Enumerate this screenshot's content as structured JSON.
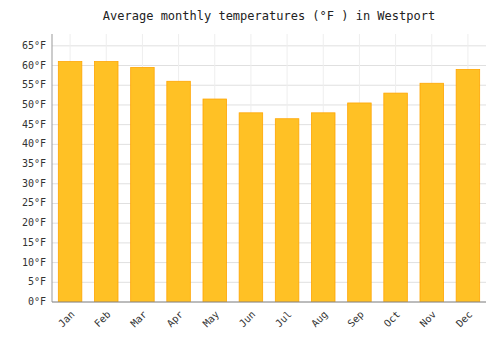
{
  "chart_data": {
    "type": "bar",
    "title": "Average monthly temperatures (°F ) in Westport",
    "categories": [
      "Jan",
      "Feb",
      "Mar",
      "Apr",
      "May",
      "Jun",
      "Jul",
      "Aug",
      "Sep",
      "Oct",
      "Nov",
      "Dec"
    ],
    "values": [
      61,
      61,
      59.5,
      56,
      51.5,
      48,
      46.5,
      48,
      50.5,
      53,
      55.5,
      59
    ],
    "color": "#FFC125",
    "ylim": [
      0,
      68
    ],
    "yticks": [
      {
        "value": 0,
        "label": "0°F"
      },
      {
        "value": 5,
        "label": "5°F"
      },
      {
        "value": 10,
        "label": "10°F"
      },
      {
        "value": 15,
        "label": "15°F"
      },
      {
        "value": 20,
        "label": "20°F"
      },
      {
        "value": 25,
        "label": "25°F"
      },
      {
        "value": 30,
        "label": "30°F"
      },
      {
        "value": 35,
        "label": "35°F"
      },
      {
        "value": 40,
        "label": "40°F"
      },
      {
        "value": 45,
        "label": "45°F"
      },
      {
        "value": 50,
        "label": "50°F"
      },
      {
        "value": 55,
        "label": "55°F"
      },
      {
        "value": 60,
        "label": "60°F"
      },
      {
        "value": 65,
        "label": "65°F"
      }
    ],
    "grid": true
  }
}
